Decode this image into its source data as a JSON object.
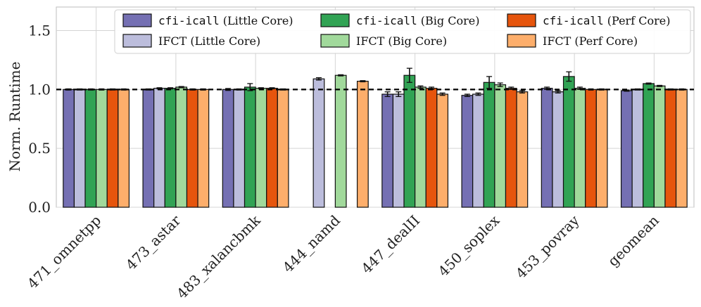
{
  "chart_data": {
    "type": "bar",
    "title": "",
    "xlabel": "",
    "ylabel": "Norm. Runtime",
    "ylim": [
      0,
      1.7
    ],
    "yticks": [
      "0.0",
      "0.5",
      "1.0",
      "1.5"
    ],
    "ytick_values": [
      0,
      0.5,
      1.0,
      1.5
    ],
    "reference_line": 1.0,
    "grid": true,
    "legend_position": "top-right",
    "categories": [
      "471_omnetpp",
      "473_astar",
      "483_xalancbmk",
      "444_namd",
      "447_dealII",
      "450_soplex",
      "453_povray",
      "geomean"
    ],
    "series": [
      {
        "name": "(Little Core)",
        "code": "cfi-icall",
        "color": "#7570b3",
        "values": [
          1.0,
          1.0,
          1.0,
          null,
          0.96,
          0.95,
          1.01,
          0.99
        ],
        "errors": [
          0.005,
          0.005,
          0.008,
          null,
          0.02,
          0.01,
          0.01,
          0.005
        ]
      },
      {
        "name": "IFCT (Little Core)",
        "code": "",
        "color": "#bcbddc",
        "values": [
          1.0,
          1.01,
          1.0,
          1.09,
          0.96,
          0.96,
          0.98,
          1.0
        ],
        "errors": [
          0.005,
          0.005,
          0.005,
          0.01,
          0.02,
          0.01,
          0.01,
          0.005
        ]
      },
      {
        "name": "(Big Core)",
        "code": "cfi-icall",
        "color": "#31a354",
        "values": [
          1.0,
          1.01,
          1.02,
          null,
          1.12,
          1.06,
          1.11,
          1.05
        ],
        "errors": [
          0.005,
          0.005,
          0.03,
          null,
          0.06,
          0.05,
          0.04,
          0.005
        ]
      },
      {
        "name": "IFCT (Big Core)",
        "code": "",
        "color": "#a1d99b",
        "values": [
          1.0,
          1.02,
          1.01,
          1.12,
          1.02,
          1.04,
          1.01,
          1.03
        ],
        "errors": [
          0.005,
          0.005,
          0.005,
          0.005,
          0.01,
          0.015,
          0.01,
          0.005
        ]
      },
      {
        "name": "(Perf Core)",
        "code": "cfi-icall",
        "color": "#e6550d",
        "values": [
          1.0,
          1.0,
          1.01,
          null,
          1.01,
          1.01,
          1.0,
          1.0
        ],
        "errors": [
          0.005,
          0.005,
          0.005,
          null,
          0.01,
          0.01,
          0.005,
          0.005
        ]
      },
      {
        "name": "IFCT (Perf Core)",
        "code": "",
        "color": "#fdae6b",
        "values": [
          1.0,
          1.0,
          1.0,
          1.07,
          0.96,
          0.98,
          1.0,
          1.0
        ],
        "errors": [
          0.005,
          0.005,
          0.005,
          0.005,
          0.01,
          0.01,
          0.005,
          0.005
        ]
      }
    ]
  }
}
